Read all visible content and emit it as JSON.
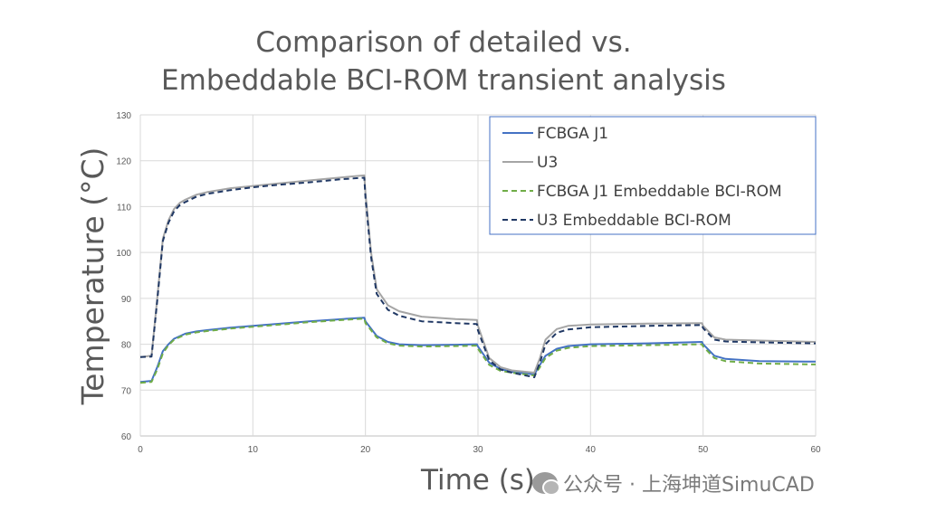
{
  "chart_data": {
    "type": "line",
    "title_lines": [
      "Comparison of detailed vs.",
      "Embeddable BCI-ROM transient analysis"
    ],
    "xlabel": "Time (s)",
    "ylabel": "Temperature (°C)",
    "xlim": [
      0,
      60
    ],
    "ylim": [
      60,
      130
    ],
    "xticks": [
      0,
      10,
      20,
      30,
      40,
      50,
      60
    ],
    "yticks": [
      60,
      70,
      80,
      90,
      100,
      110,
      120,
      130
    ],
    "grid": true,
    "legend": "top-right",
    "series": [
      {
        "name": "FCBGA J1",
        "color": "#4472C4",
        "dash": "solid",
        "x": [
          0,
          1,
          1.5,
          2,
          2.5,
          3,
          4,
          5,
          6,
          8,
          10,
          12,
          15,
          18,
          19.9,
          20,
          21,
          22,
          23,
          25,
          28,
          29.9,
          30,
          31,
          32,
          33,
          35,
          35.5,
          36,
          37,
          38,
          40,
          45,
          49.9,
          50,
          51,
          52,
          55,
          60
        ],
        "y": [
          71.8,
          72,
          75,
          78.5,
          80,
          81.2,
          82.3,
          82.8,
          83.1,
          83.6,
          84,
          84.4,
          85,
          85.5,
          85.8,
          85,
          81.8,
          80.5,
          80,
          79.8,
          79.9,
          80,
          79.5,
          76,
          74.6,
          74,
          73.4,
          75.5,
          77.5,
          79,
          79.6,
          80,
          80.2,
          80.5,
          80,
          77.5,
          76.8,
          76.3,
          76.2
        ]
      },
      {
        "name": "U3",
        "color": "#A5A5A5",
        "dash": "solid",
        "x": [
          0,
          1,
          1.5,
          2,
          2.5,
          3,
          3.5,
          4,
          5,
          6,
          8,
          10,
          12,
          15,
          18,
          19.9,
          20,
          20.5,
          21,
          22,
          23,
          25,
          28,
          29.9,
          30,
          31,
          32,
          33,
          35,
          35.5,
          36,
          37,
          38,
          40,
          45,
          49.9,
          50,
          51,
          52,
          55,
          60
        ],
        "y": [
          77.2,
          77.5,
          90,
          103,
          107,
          109.5,
          110.8,
          111.5,
          112.6,
          113.2,
          114,
          114.5,
          115,
          115.7,
          116.4,
          116.8,
          113,
          100,
          92,
          88.5,
          87.2,
          86,
          85.5,
          85.3,
          84,
          77,
          75,
          74.3,
          73.8,
          77,
          81,
          83.3,
          84,
          84.3,
          84.5,
          84.6,
          84,
          81.5,
          81,
          80.8,
          80.5
        ]
      },
      {
        "name": "FCBGA J1 Embeddable BCI-ROM",
        "color": "#70AD47",
        "dash": "dashed",
        "x": [
          0,
          1,
          1.5,
          2,
          2.5,
          3,
          4,
          5,
          6,
          8,
          10,
          12,
          15,
          18,
          19.9,
          20,
          21,
          22,
          23,
          25,
          28,
          29.9,
          30,
          31,
          32,
          33,
          35,
          35.5,
          36,
          37,
          38,
          40,
          45,
          49.9,
          50,
          51,
          52,
          55,
          60
        ],
        "y": [
          71.6,
          71.8,
          74.5,
          78,
          79.8,
          81,
          82.1,
          82.6,
          82.9,
          83.4,
          83.8,
          84.2,
          84.8,
          85.3,
          85.6,
          84.6,
          81.5,
          80.2,
          79.7,
          79.5,
          79.6,
          79.7,
          79,
          75.5,
          74.2,
          73.8,
          73.2,
          75,
          77,
          78.6,
          79.2,
          79.6,
          79.8,
          80,
          79.5,
          77,
          76.3,
          75.8,
          75.6
        ]
      },
      {
        "name": "U3 Embeddable BCI-ROM",
        "color": "#203864",
        "dash": "dashed",
        "x": [
          0,
          1,
          1.5,
          2,
          2.5,
          3,
          3.5,
          4,
          5,
          6,
          8,
          10,
          12,
          15,
          18,
          19.9,
          20,
          20.5,
          21,
          22,
          23,
          25,
          28,
          29.9,
          30,
          31,
          32,
          33,
          35,
          35.5,
          36,
          37,
          38,
          40,
          45,
          49.9,
          50,
          51,
          52,
          55,
          60
        ],
        "y": [
          77.2,
          77.3,
          89.5,
          102.5,
          106.5,
          109,
          110.3,
          111,
          112.2,
          112.8,
          113.6,
          114.2,
          114.7,
          115.3,
          116,
          116.3,
          112,
          99,
          91,
          87.5,
          86.2,
          85,
          84.6,
          84.4,
          83,
          76.5,
          74.5,
          73.8,
          72.8,
          76,
          80,
          82.5,
          83.2,
          83.7,
          84,
          84.2,
          83.5,
          81,
          80.6,
          80.4,
          80.2
        ]
      }
    ]
  },
  "watermark": {
    "text": "公众号 · 上海坤道SimuCAD",
    "icon": "wechat-icon"
  }
}
